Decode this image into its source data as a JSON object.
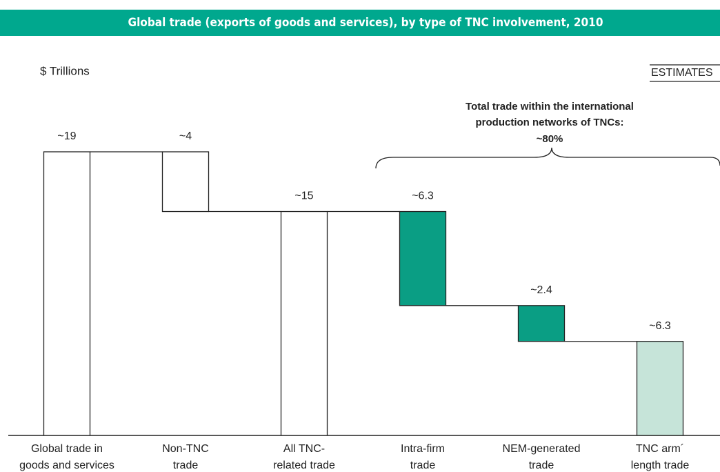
{
  "chart_data": {
    "type": "waterfall",
    "title": "Global trade (exports of goods and services), by type of TNC involvement, 2010",
    "y_label": "$ Trillions",
    "badge": "ESTIMATES",
    "annotation": [
      "Total trade within the international",
      "production networks of TNCs:",
      "~80%"
    ],
    "categories": [
      [
        "Global trade in",
        "goods and services"
      ],
      [
        "Non-TNC",
        "trade"
      ],
      [
        "All TNC-",
        "related trade"
      ],
      [
        "Intra-firm",
        "trade"
      ],
      [
        "NEM-generated",
        "trade"
      ],
      [
        "TNC arm´",
        "length trade"
      ]
    ],
    "values": [
      19,
      4,
      15,
      6.3,
      2.4,
      6.3
    ],
    "value_labels": [
      "~19",
      "~4",
      "~15",
      "~6.3",
      "~2.4",
      "~6.3"
    ],
    "measure": [
      "total",
      "decrease",
      "total",
      "decrease",
      "decrease",
      "decrease"
    ],
    "colors": [
      "#ffffff",
      "#ffffff",
      "#ffffff",
      "#0a9e84",
      "#0a9e84",
      "#c6e4d9"
    ]
  }
}
